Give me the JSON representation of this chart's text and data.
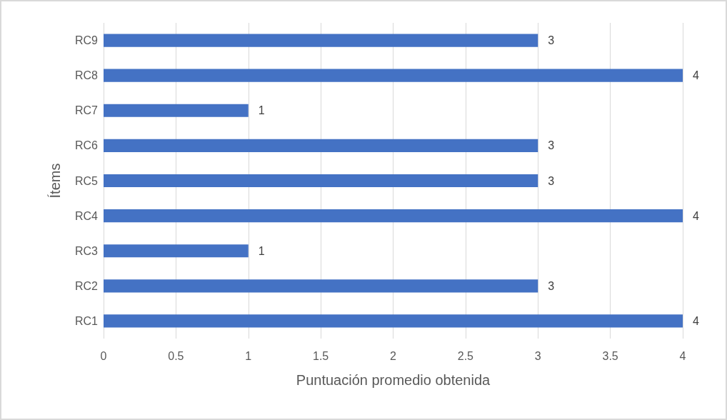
{
  "chart_data": {
    "type": "bar",
    "orientation": "horizontal",
    "xlabel": "Puntuación promedio obtenida",
    "ylabel": "Ítems",
    "categories": [
      "RC9",
      "RC8",
      "RC7",
      "RC6",
      "RC5",
      "RC4",
      "RC3",
      "RC2",
      "RC1"
    ],
    "values": [
      3,
      4,
      1,
      3,
      3,
      4,
      1,
      3,
      4
    ],
    "color": "#4472c4",
    "xlim": [
      0,
      4
    ],
    "xticks": [
      0,
      0.5,
      1,
      1.5,
      2,
      2.5,
      3,
      3.5,
      4
    ],
    "grid": "x",
    "data_labels": true
  }
}
